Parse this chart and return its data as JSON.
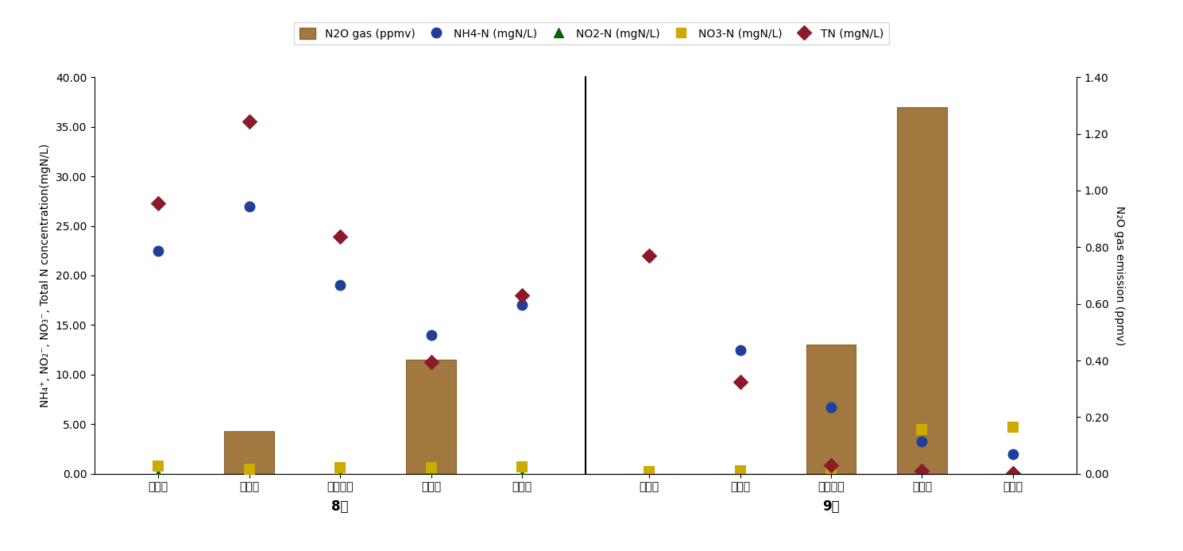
{
  "categories": [
    "유입수",
    "혁기조",
    "무산소조",
    "호기조",
    "유출수"
  ],
  "months": [
    "8月",
    "9月"
  ],
  "aug": {
    "NH4": [
      22.5,
      27.0,
      19.0,
      14.0,
      17.0
    ],
    "NO2": [
      0.0,
      -0.1,
      -0.1,
      -0.1,
      -0.1
    ],
    "NO3": [
      0.8,
      0.5,
      0.65,
      0.6,
      0.7
    ],
    "TN": [
      27.3,
      35.5,
      23.9,
      11.3,
      18.0
    ],
    "N2O_left": [
      0.0,
      4.3,
      0.0,
      11.5,
      0.0
    ]
  },
  "sep": {
    "NH4": [
      22.0,
      12.5,
      6.7,
      3.3,
      2.0
    ],
    "NO2": [
      -0.05,
      -0.05,
      0.1,
      0.05,
      0.05
    ],
    "NO3": [
      0.2,
      0.3,
      0.4,
      4.5,
      4.7
    ],
    "TN": [
      22.0,
      9.3,
      0.9,
      0.3,
      0.1
    ],
    "N2O_left": [
      0.0,
      0.0,
      13.0,
      37.0,
      0.0
    ]
  },
  "ylim_left": [
    0.0,
    40.0
  ],
  "ylim_right": [
    0.0,
    1.4
  ],
  "yticks_left": [
    0.0,
    5.0,
    10.0,
    15.0,
    20.0,
    25.0,
    30.0,
    35.0,
    40.0
  ],
  "yticks_right": [
    0.0,
    0.2,
    0.4,
    0.6,
    0.8,
    1.0,
    1.2,
    1.4
  ],
  "bar_color": "#A07840",
  "bar_edge_color": "#8B6530",
  "NH4_color": "#1F3F99",
  "NO2_color": "#006600",
  "NO3_color": "#CCAA00",
  "TN_color": "#8B1A2A",
  "ylabel_left": "NH₄⁺, NO₂⁻, NO₃⁻, Total N concentration(mgN/L)",
  "ylabel_right": "N₂O gas emission (ppmv)",
  "legend_labels": [
    "N2O gas (ppmv)",
    "NH4-N (mgN/L)",
    "NO2-N (mgN/L)",
    "NO3-N (mgN/L)",
    "TN (mgN/L)"
  ],
  "figsize": [
    14.89,
    6.94
  ],
  "dpi": 100
}
